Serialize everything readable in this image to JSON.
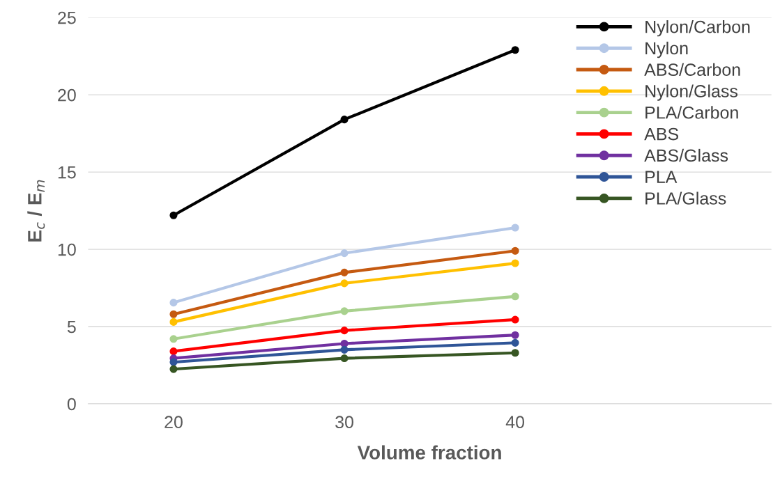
{
  "chart_data": {
    "type": "line",
    "xlabel": "Volume fraction",
    "ylabel": "E$_{c}$ / E$_{m}$",
    "x": [
      20,
      30,
      40
    ],
    "xlim": [
      15,
      55
    ],
    "xticks": [
      20,
      30,
      40
    ],
    "ylim": [
      0,
      25
    ],
    "yticks": [
      0,
      5,
      10,
      15,
      20,
      25
    ],
    "grid": "y",
    "legend": "top right",
    "marker": "circle",
    "line_style": "solid",
    "series": [
      {
        "name": "Nylon/Carbon",
        "color": "#000000",
        "values": [
          12.2,
          18.4,
          22.9
        ]
      },
      {
        "name": "Nylon",
        "color": "#b4c7e7",
        "values": [
          6.55,
          9.75,
          11.4
        ]
      },
      {
        "name": "ABS/Carbon",
        "color": "#c55a11",
        "values": [
          5.8,
          8.5,
          9.9
        ]
      },
      {
        "name": "Nylon/Glass",
        "color": "#ffc000",
        "values": [
          5.3,
          7.8,
          9.1
        ]
      },
      {
        "name": "PLA/Carbon",
        "color": "#a9d18e",
        "values": [
          4.2,
          6.0,
          6.95
        ]
      },
      {
        "name": "ABS",
        "color": "#ff0000",
        "values": [
          3.4,
          4.75,
          5.45
        ]
      },
      {
        "name": "ABS/Glass",
        "color": "#7030a0",
        "values": [
          2.95,
          3.9,
          4.45
        ]
      },
      {
        "name": "PLA",
        "color": "#2f5597",
        "values": [
          2.7,
          3.5,
          3.95
        ]
      },
      {
        "name": "PLA/Glass",
        "color": "#375623",
        "values": [
          2.25,
          2.95,
          3.3
        ]
      }
    ]
  }
}
